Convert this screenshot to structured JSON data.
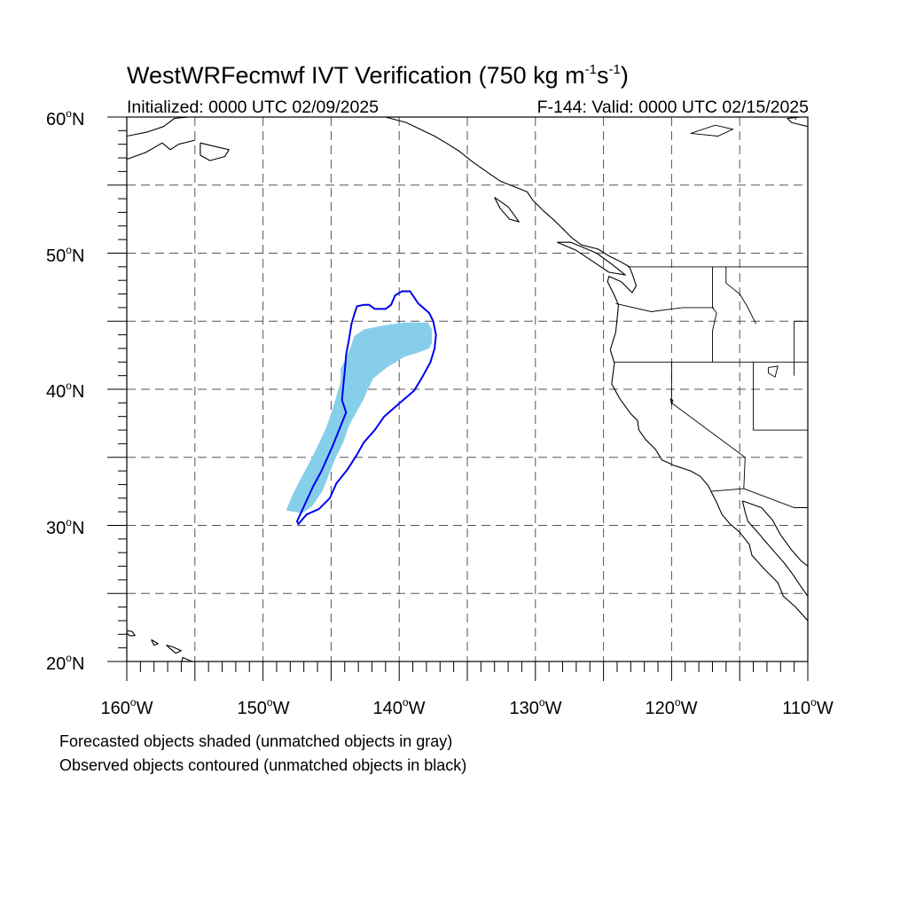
{
  "title_main": "WestWRFecmwf IVT Verification (750 kg m",
  "title_exp1": "-1",
  "title_mid": "s",
  "title_exp2": "-1",
  "title_end": ")",
  "initialized": "Initialized: 0000 UTC 02/09/2025",
  "valid": "F-144: Valid: 0000 UTC 02/15/2025",
  "lat_labels": [
    "60",
    "50",
    "40",
    "30",
    "20"
  ],
  "lat_suffix": "N",
  "lon_labels": [
    "160",
    "150",
    "140",
    "130",
    "120",
    "110"
  ],
  "lon_suffix": "W",
  "degree_symbol": "o",
  "legend_forecast": "Forecasted objects shaded (unmatched objects in gray)",
  "legend_observed": "Observed objects contoured (unmatched objects in black)",
  "map_extent": {
    "lon_min": -160,
    "lon_max": -110,
    "lat_min": 20,
    "lat_max": 60
  },
  "colors": {
    "forecast_fill": "#87ceeb",
    "observed_contour": "#0000ee",
    "coastline": "#000000",
    "grid": "#555555"
  },
  "forecast_object": [
    [
      -147.1,
      30.9
    ],
    [
      -146.4,
      31.4
    ],
    [
      -145.6,
      32.6
    ],
    [
      -145.1,
      33.9
    ],
    [
      -144.6,
      35.1
    ],
    [
      -144.1,
      36.1
    ],
    [
      -143.7,
      37.3
    ],
    [
      -143.2,
      38.2
    ],
    [
      -142.6,
      39.3
    ],
    [
      -142.3,
      40.0
    ],
    [
      -141.9,
      40.8
    ],
    [
      -140.9,
      41.6
    ],
    [
      -139.6,
      42.4
    ],
    [
      -138.6,
      42.7
    ],
    [
      -137.8,
      43.0
    ],
    [
      -137.6,
      43.4
    ],
    [
      -137.6,
      44.4
    ],
    [
      -137.9,
      44.9
    ],
    [
      -139.6,
      44.9
    ],
    [
      -141.1,
      44.7
    ],
    [
      -142.6,
      44.4
    ],
    [
      -143.3,
      43.9
    ],
    [
      -143.6,
      43.0
    ],
    [
      -144.0,
      42.1
    ],
    [
      -144.3,
      41.5
    ],
    [
      -144.3,
      40.6
    ],
    [
      -144.6,
      39.5
    ],
    [
      -145.0,
      38.2
    ],
    [
      -145.4,
      37.1
    ],
    [
      -146.0,
      35.8
    ],
    [
      -146.6,
      34.6
    ],
    [
      -147.3,
      33.3
    ],
    [
      -147.9,
      32.1
    ],
    [
      -148.3,
      31.1
    ]
  ],
  "observed_object": [
    [
      -147.4,
      30.1
    ],
    [
      -146.8,
      30.8
    ],
    [
      -145.9,
      31.2
    ],
    [
      -145.1,
      32.0
    ],
    [
      -144.6,
      33.1
    ],
    [
      -143.8,
      34.1
    ],
    [
      -143.1,
      35.2
    ],
    [
      -142.6,
      36.1
    ],
    [
      -141.8,
      37.0
    ],
    [
      -141.1,
      38.0
    ],
    [
      -140.3,
      38.7
    ],
    [
      -139.6,
      39.3
    ],
    [
      -138.9,
      39.9
    ],
    [
      -138.3,
      40.9
    ],
    [
      -137.7,
      42.0
    ],
    [
      -137.4,
      43.0
    ],
    [
      -137.3,
      44.0
    ],
    [
      -137.5,
      45.0
    ],
    [
      -137.8,
      45.6
    ],
    [
      -138.6,
      46.3
    ],
    [
      -139.2,
      47.2
    ],
    [
      -139.8,
      47.2
    ],
    [
      -140.3,
      46.9
    ],
    [
      -140.6,
      46.2
    ],
    [
      -141.0,
      45.9
    ],
    [
      -141.8,
      45.9
    ],
    [
      -142.2,
      46.2
    ],
    [
      -142.6,
      46.2
    ],
    [
      -143.1,
      46.1
    ],
    [
      -143.3,
      45.5
    ],
    [
      -143.5,
      44.8
    ],
    [
      -143.7,
      43.6
    ],
    [
      -143.9,
      42.5
    ],
    [
      -144.0,
      41.3
    ],
    [
      -144.1,
      40.3
    ],
    [
      -144.2,
      39.2
    ],
    [
      -143.9,
      38.3
    ],
    [
      -144.3,
      37.3
    ],
    [
      -144.9,
      35.8
    ],
    [
      -145.7,
      34.0
    ],
    [
      -146.3,
      32.9
    ],
    [
      -146.9,
      31.6
    ],
    [
      -147.5,
      30.3
    ]
  ],
  "coastlines": {
    "north_america": [
      [
        -141.0,
        60.0
      ],
      [
        -139.5,
        59.6
      ],
      [
        -137.4,
        58.6
      ],
      [
        -136.4,
        58.0
      ],
      [
        -135.6,
        57.5
      ],
      [
        -134.6,
        56.7
      ],
      [
        -133.6,
        56.0
      ],
      [
        -132.6,
        55.3
      ],
      [
        -131.6,
        54.9
      ],
      [
        -130.6,
        54.5
      ],
      [
        -130.2,
        53.9
      ],
      [
        -129.4,
        53.1
      ],
      [
        -128.6,
        52.4
      ],
      [
        -127.8,
        51.6
      ],
      [
        -127.3,
        51.1
      ],
      [
        -126.6,
        50.6
      ],
      [
        -125.4,
        50.3
      ],
      [
        -124.6,
        49.8
      ],
      [
        -123.8,
        49.4
      ],
      [
        -123.1,
        49.0
      ],
      [
        -122.9,
        48.5
      ],
      [
        -122.6,
        47.6
      ],
      [
        -122.9,
        47.1
      ],
      [
        -123.7,
        47.9
      ],
      [
        -124.6,
        48.3
      ],
      [
        -124.7,
        47.9
      ],
      [
        -124.2,
        46.9
      ],
      [
        -123.9,
        46.2
      ],
      [
        -124.0,
        45.2
      ],
      [
        -124.1,
        44.2
      ],
      [
        -124.5,
        42.9
      ],
      [
        -124.2,
        41.9
      ],
      [
        -124.4,
        40.4
      ],
      [
        -123.8,
        39.3
      ],
      [
        -123.0,
        38.2
      ],
      [
        -122.5,
        37.7
      ],
      [
        -122.4,
        37.0
      ],
      [
        -121.9,
        36.3
      ],
      [
        -121.2,
        35.6
      ],
      [
        -120.7,
        34.8
      ],
      [
        -119.8,
        34.4
      ],
      [
        -118.6,
        34.0
      ],
      [
        -117.9,
        33.6
      ],
      [
        -117.3,
        32.9
      ],
      [
        -117.1,
        32.5
      ],
      [
        -116.7,
        31.7
      ],
      [
        -116.3,
        30.8
      ],
      [
        -115.7,
        30.1
      ],
      [
        -115.0,
        29.5
      ],
      [
        -114.3,
        28.6
      ],
      [
        -114.1,
        27.8
      ],
      [
        -113.2,
        26.8
      ],
      [
        -112.2,
        25.8
      ],
      [
        -111.8,
        24.8
      ],
      [
        -110.9,
        24.0
      ],
      [
        -110.0,
        23.0
      ]
    ],
    "baja_gulf_east": [
      [
        -114.8,
        31.8
      ],
      [
        -114.6,
        31.0
      ],
      [
        -114.4,
        30.3
      ],
      [
        -113.6,
        29.4
      ],
      [
        -113.1,
        28.8
      ],
      [
        -112.4,
        28.0
      ],
      [
        -111.7,
        27.2
      ],
      [
        -111.1,
        26.4
      ],
      [
        -110.5,
        25.5
      ],
      [
        -110.0,
        24.8
      ]
    ],
    "mainland_mexico_west": [
      [
        -114.8,
        31.8
      ],
      [
        -113.4,
        31.3
      ],
      [
        -112.6,
        30.4
      ],
      [
        -112.0,
        29.3
      ],
      [
        -111.2,
        28.2
      ],
      [
        -110.5,
        27.4
      ],
      [
        -110.0,
        27.0
      ]
    ],
    "hawaii_1": [
      [
        -160.2,
        22.3
      ],
      [
        -159.6,
        22.2
      ],
      [
        -159.4,
        21.9
      ],
      [
        -159.8,
        21.9
      ],
      [
        -160.2,
        22.3
      ]
    ],
    "hawaii_2": [
      [
        -158.2,
        21.6
      ],
      [
        -157.7,
        21.3
      ],
      [
        -158.0,
        21.2
      ],
      [
        -158.2,
        21.6
      ]
    ],
    "hawaii_3": [
      [
        -157.1,
        21.2
      ],
      [
        -156.7,
        21.1
      ],
      [
        -156.0,
        20.8
      ],
      [
        -156.4,
        20.6
      ],
      [
        -157.1,
        21.2
      ]
    ],
    "hawaii_4": [
      [
        -155.9,
        20.3
      ],
      [
        -155.0,
        19.9
      ],
      [
        -154.8,
        19.5
      ],
      [
        -155.6,
        18.9
      ],
      [
        -156.0,
        19.7
      ],
      [
        -155.9,
        20.3
      ]
    ],
    "alaska_1": [
      [
        -160.0,
        58.6
      ],
      [
        -158.5,
        58.9
      ],
      [
        -157.3,
        59.3
      ],
      [
        -156.5,
        59.9
      ],
      [
        -155.5,
        60.0
      ]
    ],
    "alaska_2": [
      [
        -160.0,
        56.9
      ],
      [
        -158.6,
        57.4
      ],
      [
        -157.4,
        58.1
      ],
      [
        -156.8,
        57.6
      ],
      [
        -156.2,
        58.0
      ],
      [
        -155.0,
        58.3
      ]
    ],
    "kodiak": [
      [
        -154.6,
        58.1
      ],
      [
        -153.8,
        57.9
      ],
      [
        -152.5,
        57.6
      ],
      [
        -152.8,
        57.1
      ],
      [
        -153.9,
        56.8
      ],
      [
        -154.6,
        57.2
      ],
      [
        -154.6,
        58.1
      ]
    ],
    "vancouver_island": [
      [
        -128.4,
        50.8
      ],
      [
        -127.0,
        50.2
      ],
      [
        -125.8,
        49.4
      ],
      [
        -124.6,
        48.6
      ],
      [
        -123.4,
        48.4
      ],
      [
        -124.4,
        49.2
      ],
      [
        -125.5,
        50.0
      ],
      [
        -127.4,
        50.8
      ],
      [
        -128.4,
        50.8
      ]
    ],
    "haida_gwaii": [
      [
        -133.0,
        54.1
      ],
      [
        -132.0,
        53.4
      ],
      [
        -131.2,
        52.3
      ],
      [
        -131.9,
        52.5
      ],
      [
        -132.6,
        53.3
      ],
      [
        -133.0,
        54.1
      ]
    ],
    "hudson_east": [
      [
        -110.0,
        59.3
      ],
      [
        -111.2,
        59.6
      ],
      [
        -111.5,
        59.9
      ],
      [
        -110.6,
        60.0
      ]
    ]
  },
  "borders": [
    [
      [
        -123.2,
        49.0
      ],
      [
        -110.0,
        49.0
      ]
    ],
    [
      [
        -124.1,
        46.3
      ],
      [
        -121.5,
        45.7
      ],
      [
        -119.2,
        46.0
      ],
      [
        -116.9,
        46.0
      ]
    ],
    [
      [
        -124.2,
        42.0
      ],
      [
        -110.0,
        42.0
      ]
    ],
    [
      [
        -117.0,
        49.0
      ],
      [
        -117.0,
        46.0
      ],
      [
        -116.7,
        45.6
      ],
      [
        -117.0,
        44.3
      ],
      [
        -117.0,
        42.0
      ]
    ],
    [
      [
        -120.0,
        42.0
      ],
      [
        -120.0,
        39.0
      ],
      [
        -114.6,
        35.0
      ],
      [
        -114.7,
        32.7
      ],
      [
        -117.1,
        32.5
      ]
    ],
    [
      [
        -114.0,
        42.0
      ],
      [
        -114.0,
        37.0
      ],
      [
        -110.0,
        37.0
      ]
    ],
    [
      [
        -111.0,
        45.0
      ],
      [
        -110.0,
        45.0
      ]
    ],
    [
      [
        -114.7,
        32.7
      ],
      [
        -111.0,
        31.3
      ],
      [
        -110.0,
        31.3
      ]
    ],
    [
      [
        -116.0,
        49.0
      ],
      [
        -116.0,
        47.8
      ],
      [
        -115.0,
        47.0
      ],
      [
        -114.4,
        46.0
      ],
      [
        -113.8,
        44.8
      ]
    ],
    [
      [
        -111.0,
        45.0
      ],
      [
        -111.0,
        41.0
      ]
    ],
    [
      [
        -110.9,
        60.0
      ],
      [
        -110.9,
        59.8
      ]
    ]
  ],
  "lakes": [
    [
      [
        -112.9,
        41.6
      ],
      [
        -112.2,
        41.7
      ],
      [
        -112.4,
        40.9
      ],
      [
        -112.9,
        41.2
      ],
      [
        -112.9,
        41.6
      ]
    ],
    [
      [
        -120.1,
        39.3
      ],
      [
        -119.9,
        39.2
      ],
      [
        -120.0,
        38.9
      ],
      [
        -120.1,
        39.3
      ]
    ],
    [
      [
        -118.6,
        58.8
      ],
      [
        -116.6,
        58.6
      ],
      [
        -115.5,
        59.1
      ],
      [
        -116.8,
        59.4
      ],
      [
        -118.6,
        58.8
      ]
    ]
  ]
}
